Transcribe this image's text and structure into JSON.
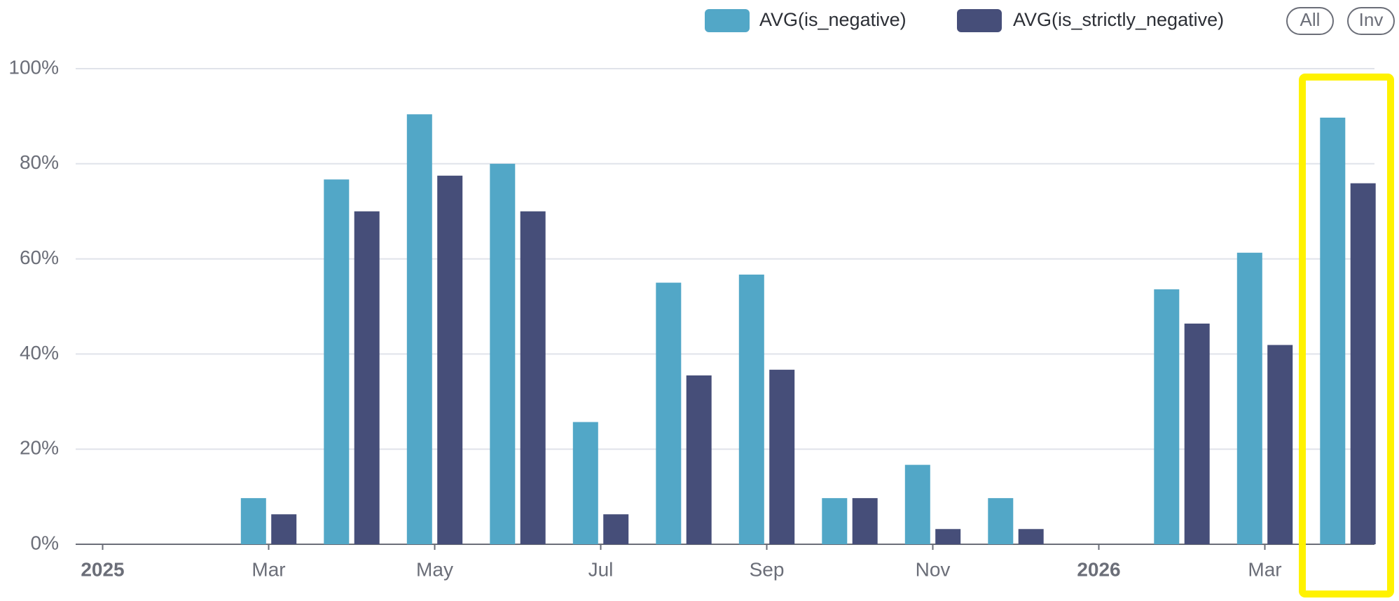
{
  "chart_data": {
    "type": "bar",
    "categories": [
      "2025",
      null,
      "Mar",
      null,
      "May",
      null,
      "Jul",
      null,
      "Sep",
      null,
      "Nov",
      null,
      "2026",
      null,
      "Mar",
      null
    ],
    "series": [
      {
        "name": "AVG(is_negative)",
        "color": "#52a7c7",
        "values": [
          null,
          null,
          9.7,
          76.7,
          90.4,
          80,
          25.7,
          55,
          56.7,
          9.7,
          16.7,
          9.7,
          null,
          53.6,
          61.3,
          89.7
        ]
      },
      {
        "name": "AVG(is_strictly_negative)",
        "color": "#464e79",
        "values": [
          null,
          null,
          6.3,
          70,
          77.5,
          70,
          6.3,
          35.5,
          36.7,
          9.7,
          3.2,
          3.2,
          null,
          46.4,
          41.9,
          75.9
        ]
      }
    ],
    "ylim": [
      0,
      100
    ],
    "yticks": [
      {
        "value": 0,
        "label": "0%"
      },
      {
        "value": 20,
        "label": "20%"
      },
      {
        "value": 40,
        "label": "40%"
      },
      {
        "value": 60,
        "label": "60%"
      },
      {
        "value": 80,
        "label": "80%"
      },
      {
        "value": 100,
        "label": "100%"
      }
    ],
    "grid": true,
    "buttons": [
      "All",
      "Inv"
    ]
  }
}
